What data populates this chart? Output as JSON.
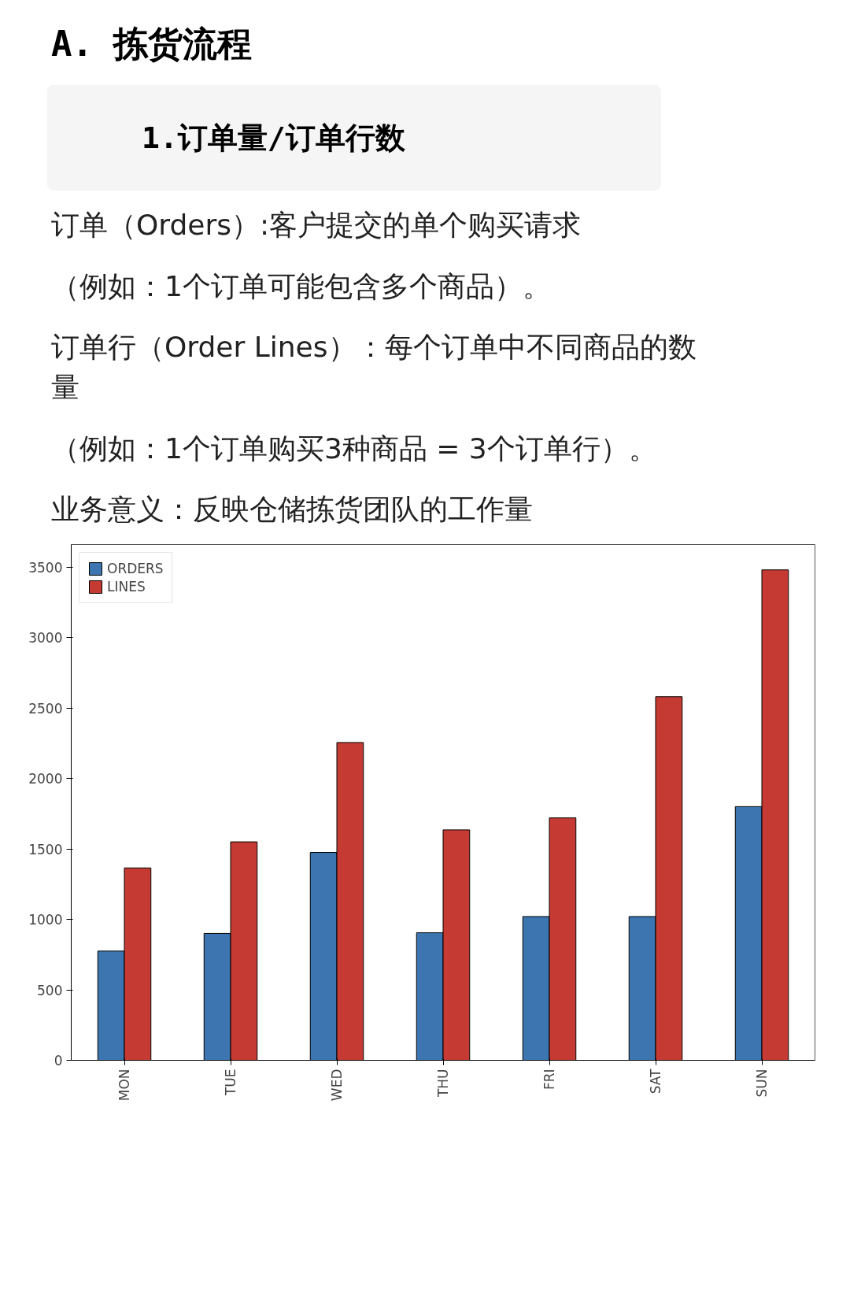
{
  "chart_data": {
    "type": "bar",
    "title": "A. 拣货流程",
    "subtitle": "1.订单量/订单行数",
    "annotations": [
      "订单（Orders）:客户提交的单个购买请求",
      "（例如：1个订单可能包含多个商品）。",
      "订单行（Order Lines）：每个订单中不同商品的数量",
      "（例如：1个订单购买3种商品 = 3个订单行）。",
      "业务意义：反映仓储拣货团队的工作量"
    ],
    "categories": [
      "MON",
      "TUE",
      "WED",
      "THU",
      "FRI",
      "SAT",
      "SUN"
    ],
    "series": [
      {
        "name": "ORDERS",
        "color": "#3c75b0",
        "values": [
          775,
          900,
          1475,
          905,
          1020,
          1020,
          1800
        ]
      },
      {
        "name": "LINES",
        "color": "#c53a32",
        "values": [
          1365,
          1550,
          2255,
          1635,
          1720,
          2580,
          3480
        ]
      }
    ],
    "ylim": [
      0,
      3660
    ],
    "yticks": [
      0,
      500,
      1000,
      1500,
      2000,
      2500,
      3000,
      3500
    ],
    "grid": false,
    "legend": "top left"
  }
}
